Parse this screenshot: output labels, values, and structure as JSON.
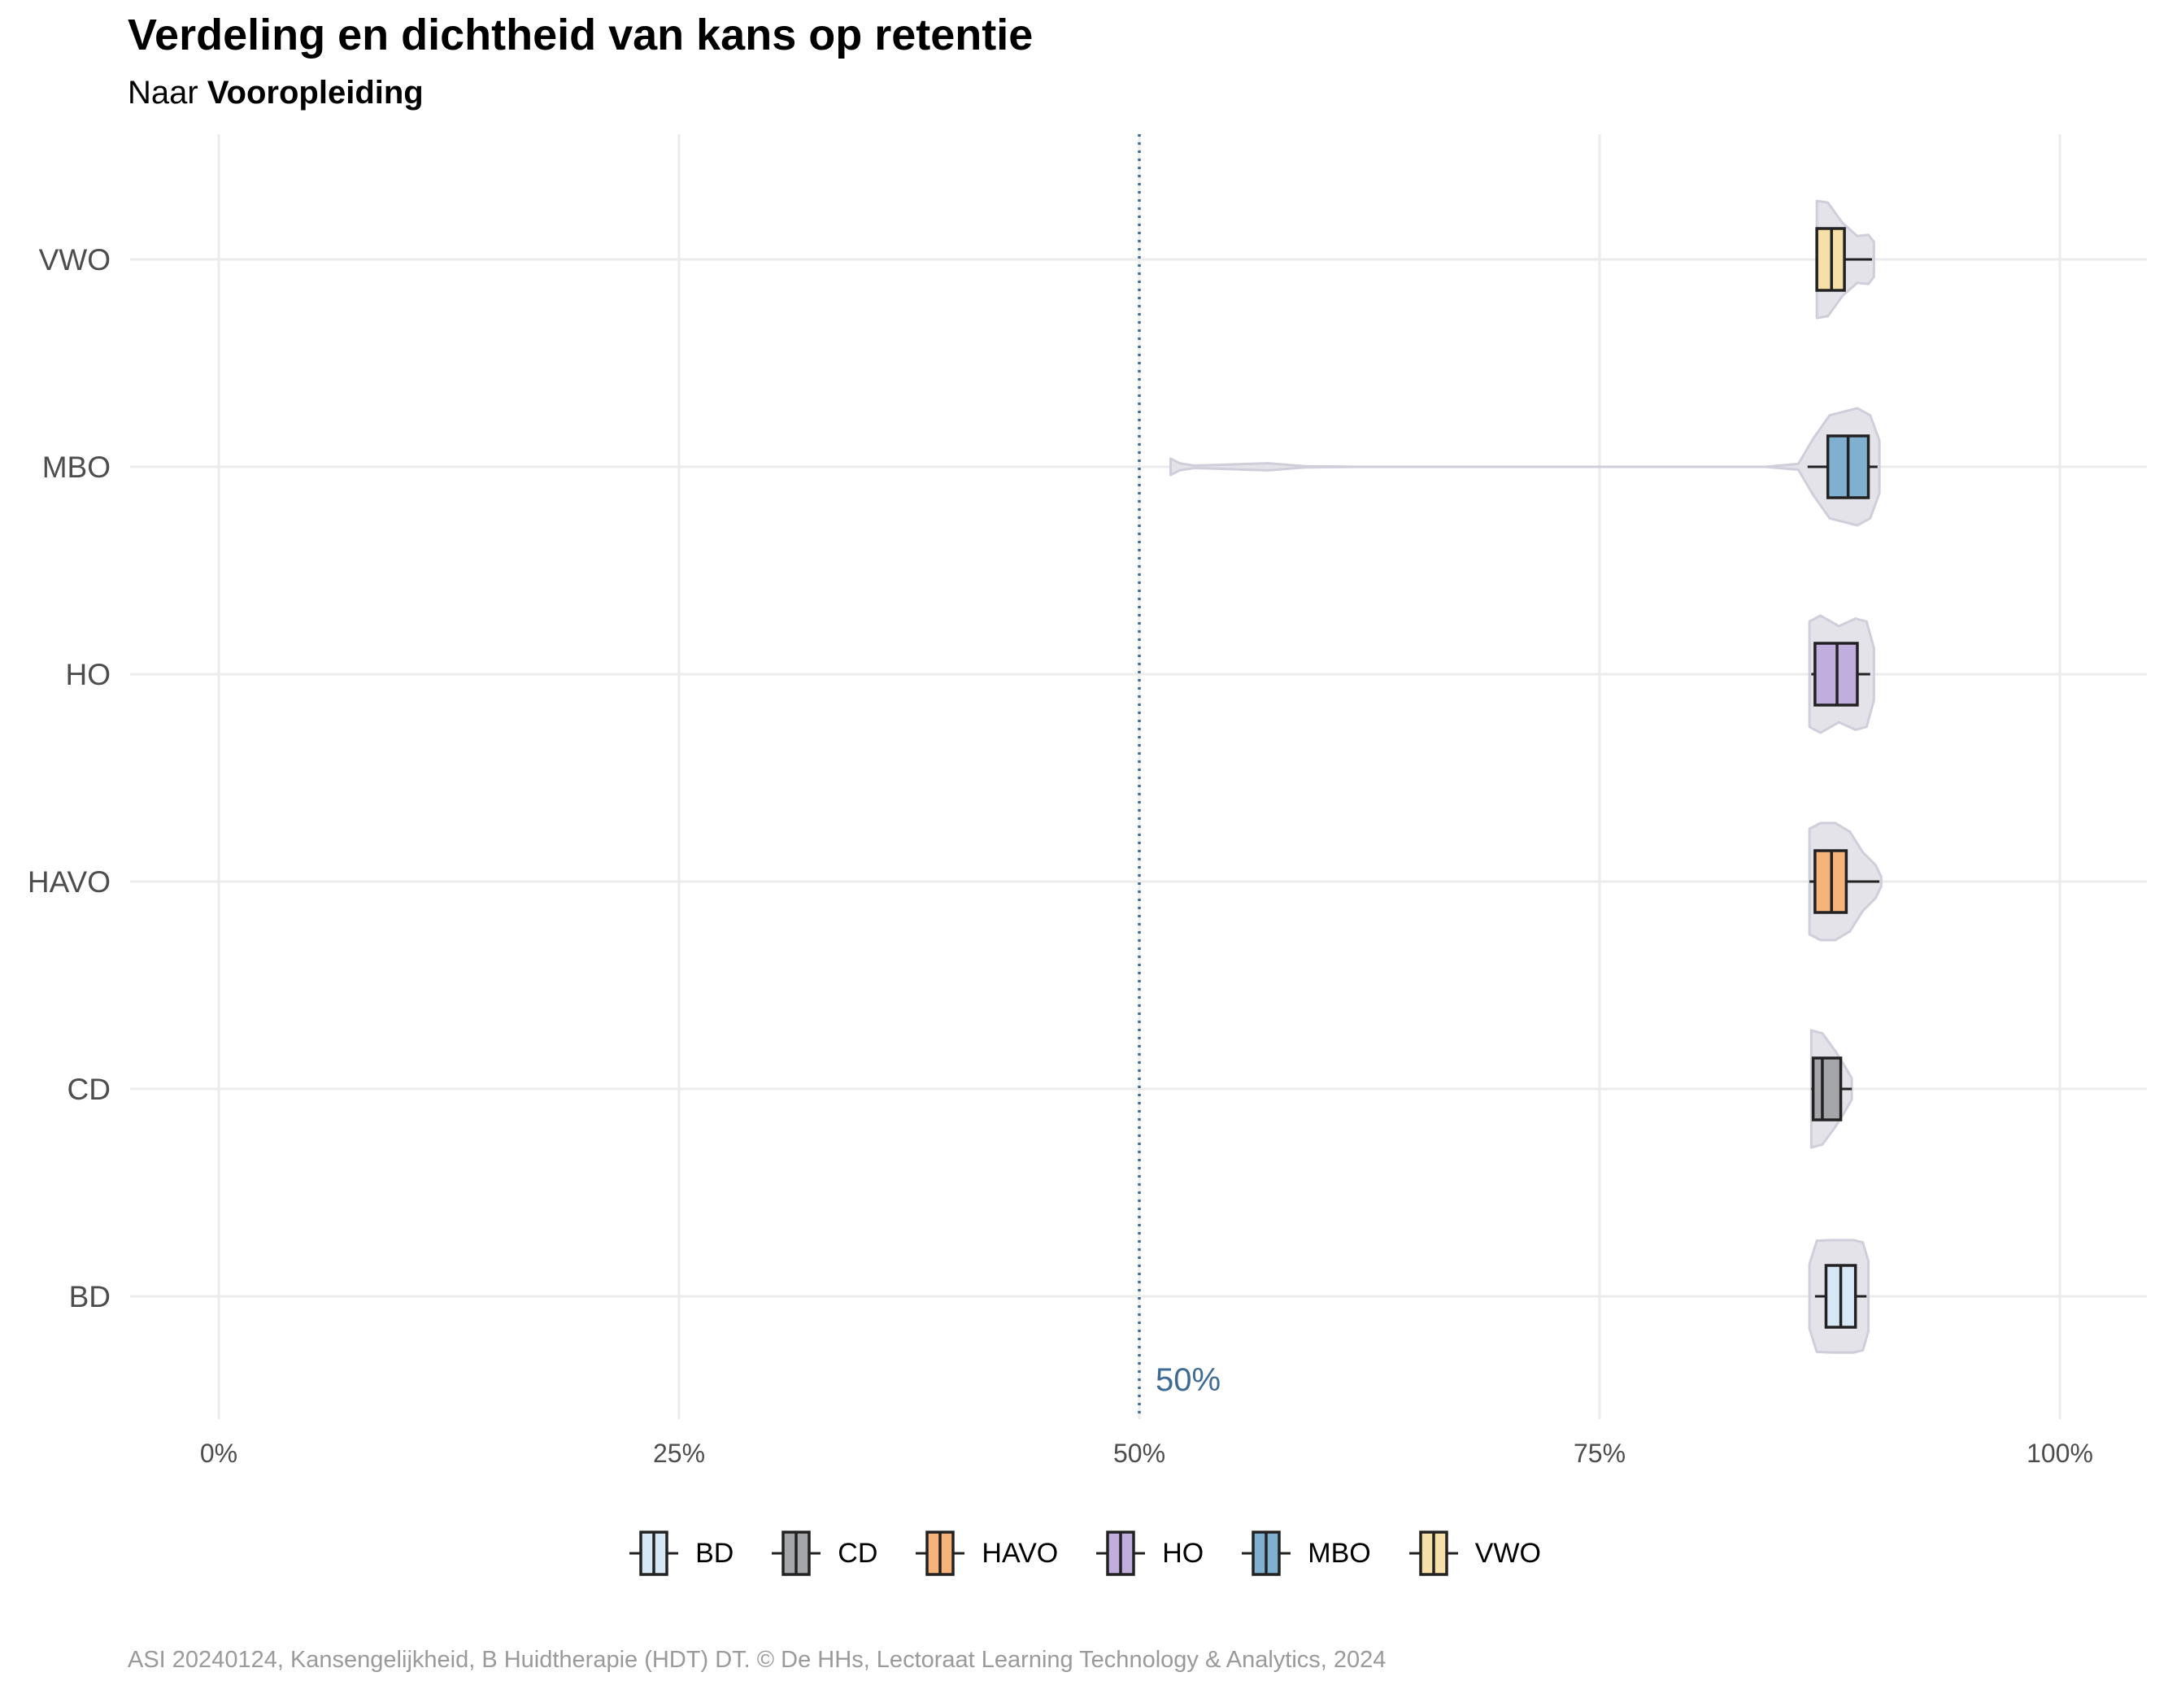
{
  "title": "Verdeling en dichtheid van kans op retentie",
  "subtitle_prefix": "Naar",
  "subtitle_bold": "Vooropleiding",
  "caption": "ASI 20240124, Kansengelijkheid, B Huidtherapie (HDT) DT. © De HHs, Lectoraat Learning Technology & Analytics, 2024",
  "chart_data": {
    "type": "violin-boxplot",
    "orientation": "horizontal",
    "title": "Verdeling en dichtheid van kans op retentie",
    "subtitle": "Naar Vooropleiding",
    "xlim": [
      -0.05,
      1.05
    ],
    "x_ticks": [
      0,
      0.25,
      0.5,
      0.75,
      1.0
    ],
    "x_tick_labels": [
      "0%",
      "25%",
      "50%",
      "75%",
      "100%"
    ],
    "reference_line": {
      "value": 0.5,
      "label": "50%",
      "color": "#3e6a94",
      "style": "dotted"
    },
    "grid": true,
    "legend_position": "bottom",
    "violin_color": "#e4e3ea",
    "violin_stroke": "#cfcedb",
    "categories": [
      "BD",
      "CD",
      "HAVO",
      "HO",
      "MBO",
      "VWO"
    ],
    "series": [
      {
        "name": "BD",
        "color": "#d6e7f6",
        "box": {
          "whisker_low": 0.867,
          "q1": 0.873,
          "median": 0.881,
          "q3": 0.889,
          "whisker_high": 0.895
        },
        "violin": {
          "min": 0.864,
          "max": 0.896,
          "profile": [
            [
              0.864,
              0.55
            ],
            [
              0.868,
              0.95
            ],
            [
              0.876,
              0.96
            ],
            [
              0.888,
              0.96
            ],
            [
              0.893,
              0.92
            ],
            [
              0.896,
              0.6
            ]
          ]
        }
      },
      {
        "name": "CD",
        "color": "#a5a6aa",
        "box": {
          "whisker_low": 0.865,
          "q1": 0.866,
          "median": 0.871,
          "q3": 0.881,
          "whisker_high": 0.887
        },
        "violin": {
          "min": 0.865,
          "max": 0.887,
          "profile": [
            [
              0.865,
              1.0
            ],
            [
              0.871,
              0.95
            ],
            [
              0.878,
              0.65
            ],
            [
              0.883,
              0.4
            ],
            [
              0.887,
              0.18
            ]
          ]
        }
      },
      {
        "name": "HAVO",
        "color": "#f6b47a",
        "box": {
          "whisker_low": 0.864,
          "q1": 0.867,
          "median": 0.876,
          "q3": 0.884,
          "whisker_high": 0.902
        },
        "violin": {
          "min": 0.864,
          "max": 0.903,
          "profile": [
            [
              0.864,
              0.9
            ],
            [
              0.87,
              1.0
            ],
            [
              0.878,
              1.0
            ],
            [
              0.886,
              0.85
            ],
            [
              0.893,
              0.5
            ],
            [
              0.9,
              0.28
            ],
            [
              0.903,
              0.08
            ]
          ]
        }
      },
      {
        "name": "HO",
        "color": "#c2aede",
        "box": {
          "whisker_low": 0.865,
          "q1": 0.867,
          "median": 0.879,
          "q3": 0.89,
          "whisker_high": 0.897
        },
        "violin": {
          "min": 0.864,
          "max": 0.899,
          "profile": [
            [
              0.864,
              0.9
            ],
            [
              0.87,
              1.0
            ],
            [
              0.88,
              0.82
            ],
            [
              0.889,
              0.95
            ],
            [
              0.895,
              0.9
            ],
            [
              0.899,
              0.45
            ]
          ]
        }
      },
      {
        "name": "MBO",
        "color": "#7fb0cf",
        "box": {
          "whisker_low": 0.863,
          "q1": 0.874,
          "median": 0.885,
          "q3": 0.896,
          "whisker_high": 0.901
        },
        "violin": {
          "min": 0.517,
          "max": 0.902,
          "profile": [
            [
              0.517,
              0.14
            ],
            [
              0.522,
              0.06
            ],
            [
              0.53,
              0.02
            ],
            [
              0.57,
              0.06
            ],
            [
              0.59,
              0.01
            ],
            [
              0.62,
              0.0
            ],
            [
              0.84,
              0.0
            ],
            [
              0.858,
              0.05
            ],
            [
              0.866,
              0.48
            ],
            [
              0.875,
              0.88
            ],
            [
              0.89,
              1.0
            ],
            [
              0.897,
              0.88
            ],
            [
              0.902,
              0.45
            ]
          ]
        }
      },
      {
        "name": "VWO",
        "color": "#f7e0a8",
        "box": {
          "whisker_low": 0.868,
          "q1": 0.868,
          "median": 0.876,
          "q3": 0.883,
          "whisker_high": 0.898
        },
        "violin": {
          "min": 0.868,
          "max": 0.899,
          "profile": [
            [
              0.868,
              1.0
            ],
            [
              0.874,
              0.97
            ],
            [
              0.882,
              0.62
            ],
            [
              0.89,
              0.4
            ],
            [
              0.896,
              0.42
            ],
            [
              0.899,
              0.3
            ]
          ]
        }
      }
    ]
  }
}
